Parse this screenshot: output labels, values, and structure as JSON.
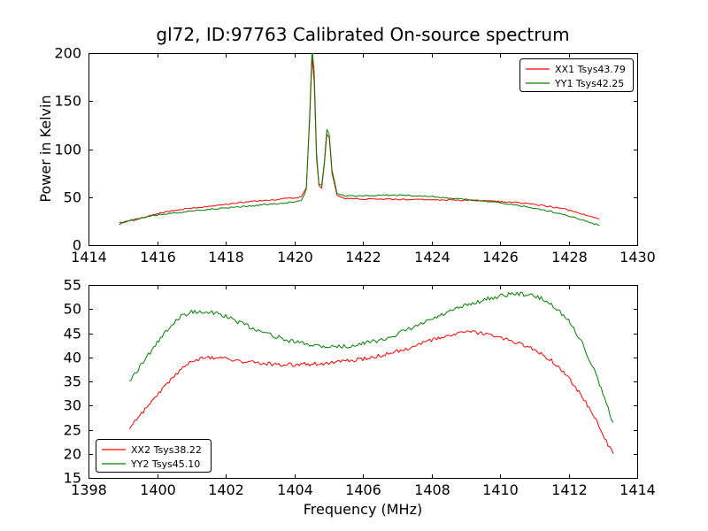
{
  "figure": {
    "background": "#ffffff",
    "frame_color": "#000000",
    "text_color": "#000000"
  },
  "chart_data": [
    {
      "type": "line",
      "title": "gl72, ID:97763 Calibrated On-source spectrum",
      "xlabel": "",
      "ylabel": "Power in Kelvin",
      "xlim": [
        1414,
        1430
      ],
      "ylim": [
        0,
        200
      ],
      "xticks": [
        1414,
        1416,
        1418,
        1420,
        1422,
        1424,
        1426,
        1428,
        1430
      ],
      "yticks": [
        0,
        50,
        100,
        150,
        200
      ],
      "grid": false,
      "legend_position": "upper-right",
      "series": [
        {
          "name": "XX1 Tsys43.79",
          "color": "#ff0000",
          "noise": 0.7,
          "x": [
            1414.9,
            1415.3,
            1415.7,
            1416.1,
            1416.6,
            1417.1,
            1417.6,
            1418.1,
            1418.6,
            1419.1,
            1419.6,
            1420.0,
            1420.2,
            1420.35,
            1420.45,
            1420.52,
            1420.58,
            1420.65,
            1420.72,
            1420.8,
            1420.88,
            1420.95,
            1421.02,
            1421.1,
            1421.25,
            1421.5,
            1422.0,
            1422.5,
            1423.0,
            1423.5,
            1424.0,
            1424.5,
            1425.0,
            1425.5,
            1426.0,
            1426.5,
            1427.0,
            1427.5,
            1428.0,
            1428.4,
            1428.9
          ],
          "y": [
            22,
            26,
            30,
            33.5,
            36.5,
            39,
            41,
            43,
            45,
            46.5,
            48,
            49.5,
            50,
            60,
            130,
            196,
            170,
            90,
            62,
            60,
            85,
            115,
            112,
            75,
            52,
            48.5,
            48,
            48,
            47.8,
            47.5,
            47.3,
            47,
            46.8,
            46.3,
            45.5,
            44.3,
            42.5,
            40,
            36.5,
            32.5,
            27.5
          ]
        },
        {
          "name": "YY1 Tsys42.25",
          "color": "#008000",
          "noise": 0.7,
          "x": [
            1414.9,
            1415.3,
            1415.7,
            1416.1,
            1416.6,
            1417.1,
            1417.6,
            1418.1,
            1418.6,
            1419.1,
            1419.6,
            1420.0,
            1420.2,
            1420.35,
            1420.45,
            1420.52,
            1420.58,
            1420.65,
            1420.72,
            1420.8,
            1420.88,
            1420.95,
            1421.02,
            1421.1,
            1421.25,
            1421.5,
            1422.0,
            1422.5,
            1423.0,
            1423.5,
            1424.0,
            1424.5,
            1425.0,
            1425.5,
            1426.0,
            1426.5,
            1427.0,
            1427.5,
            1428.0,
            1428.4,
            1428.9
          ],
          "y": [
            23,
            26.5,
            29.5,
            32,
            34,
            36,
            37.5,
            39,
            40.5,
            42,
            43.5,
            45,
            46,
            58,
            135,
            205,
            180,
            95,
            64,
            62,
            88,
            120,
            116,
            78,
            54,
            51,
            51.5,
            52,
            52,
            51.5,
            50.5,
            49,
            47.5,
            46,
            44,
            41.5,
            38.5,
            35,
            30.5,
            26,
            20.5
          ]
        }
      ]
    },
    {
      "type": "line",
      "title": "",
      "xlabel": "Frequency (MHz)",
      "ylabel": "",
      "xlim": [
        1398,
        1414
      ],
      "ylim": [
        15,
        55
      ],
      "xticks": [
        1398,
        1400,
        1402,
        1404,
        1406,
        1408,
        1410,
        1412,
        1414
      ],
      "yticks": [
        15,
        20,
        25,
        30,
        35,
        40,
        45,
        50,
        55
      ],
      "grid": false,
      "legend_position": "lower-left",
      "series": [
        {
          "name": "XX2 Tsys38.22",
          "color": "#ff0000",
          "noise": 0.4,
          "x": [
            1399.2,
            1399.5,
            1399.8,
            1400.1,
            1400.4,
            1400.7,
            1401.0,
            1401.3,
            1401.6,
            1402.0,
            1402.4,
            1402.8,
            1403.2,
            1403.6,
            1404.0,
            1404.5,
            1405.0,
            1405.5,
            1406.0,
            1406.5,
            1407.0,
            1407.5,
            1408.0,
            1408.4,
            1408.8,
            1409.2,
            1409.6,
            1410.0,
            1410.4,
            1410.8,
            1411.2,
            1411.6,
            1412.0,
            1412.4,
            1412.8,
            1413.1,
            1413.3
          ],
          "y": [
            25.5,
            28,
            30.5,
            33,
            35.5,
            37.5,
            39.2,
            39.8,
            40.0,
            39.7,
            39.2,
            38.9,
            38.7,
            38.5,
            38.5,
            38.6,
            38.8,
            39.2,
            39.6,
            40.3,
            41.2,
            42.3,
            43.5,
            44.3,
            45.0,
            45.2,
            44.8,
            44.0,
            43.2,
            42.2,
            40.8,
            38.8,
            35.8,
            31.8,
            27.0,
            22.5,
            20.0
          ]
        },
        {
          "name": "YY2 Tsys45.10",
          "color": "#008000",
          "noise": 0.45,
          "x": [
            1399.2,
            1399.5,
            1399.8,
            1400.1,
            1400.4,
            1400.7,
            1401.0,
            1401.3,
            1401.6,
            1402.0,
            1402.4,
            1402.8,
            1403.2,
            1403.6,
            1404.0,
            1404.5,
            1405.0,
            1405.5,
            1406.0,
            1406.5,
            1407.0,
            1407.5,
            1408.0,
            1408.4,
            1408.8,
            1409.2,
            1409.6,
            1410.0,
            1410.4,
            1410.8,
            1411.2,
            1411.6,
            1412.0,
            1412.4,
            1412.8,
            1413.1,
            1413.3
          ],
          "y": [
            35.0,
            38.0,
            41.0,
            44.0,
            46.5,
            48.5,
            49.4,
            49.6,
            49.3,
            48.5,
            47.2,
            46.0,
            45.0,
            44.0,
            43.2,
            42.6,
            42.2,
            42.3,
            42.8,
            43.6,
            44.8,
            46.2,
            47.8,
            49.0,
            50.2,
            51.2,
            52.0,
            52.7,
            53.2,
            53.0,
            52.2,
            50.5,
            47.5,
            43.0,
            36.5,
            30.5,
            26.5
          ]
        }
      ]
    }
  ]
}
